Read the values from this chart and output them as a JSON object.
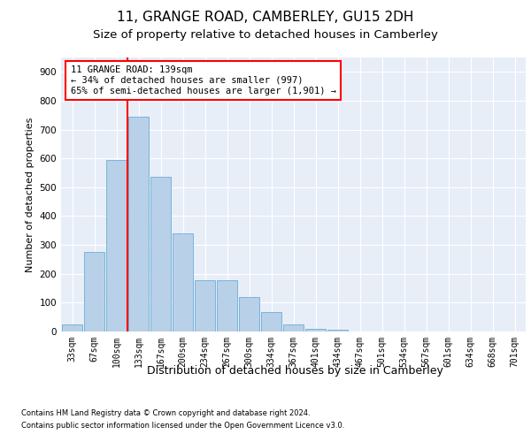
{
  "title1": "11, GRANGE ROAD, CAMBERLEY, GU15 2DH",
  "title2": "Size of property relative to detached houses in Camberley",
  "xlabel": "Distribution of detached houses by size in Camberley",
  "ylabel": "Number of detached properties",
  "bar_values": [
    25,
    275,
    595,
    745,
    535,
    340,
    178,
    178,
    118,
    68,
    25,
    10,
    5,
    1,
    0,
    0,
    0,
    0,
    0,
    0,
    0
  ],
  "bin_labels": [
    "33sqm",
    "67sqm",
    "100sqm",
    "133sqm",
    "167sqm",
    "200sqm",
    "234sqm",
    "267sqm",
    "300sqm",
    "334sqm",
    "367sqm",
    "401sqm",
    "434sqm",
    "467sqm",
    "501sqm",
    "534sqm",
    "567sqm",
    "601sqm",
    "634sqm",
    "668sqm",
    "701sqm"
  ],
  "bar_color": "#b8d0e8",
  "bar_edge_color": "#6aaed6",
  "vline_x": 2.5,
  "vline_color": "red",
  "annotation_text": "11 GRANGE ROAD: 139sqm\n← 34% of detached houses are smaller (997)\n65% of semi-detached houses are larger (1,901) →",
  "annotation_box_color": "white",
  "annotation_box_edge": "red",
  "ylim": [
    0,
    950
  ],
  "yticks": [
    0,
    100,
    200,
    300,
    400,
    500,
    600,
    700,
    800,
    900
  ],
  "footnote1": "Contains HM Land Registry data © Crown copyright and database right 2024.",
  "footnote2": "Contains public sector information licensed under the Open Government Licence v3.0.",
  "bg_color": "#e8eef8",
  "grid_color": "white",
  "title1_fontsize": 11,
  "title2_fontsize": 9.5,
  "xlabel_fontsize": 9,
  "ylabel_fontsize": 8,
  "footnote_fontsize": 6,
  "tick_fontsize": 7,
  "ytick_fontsize": 7.5
}
